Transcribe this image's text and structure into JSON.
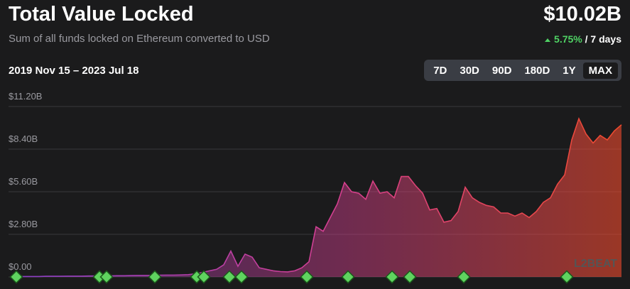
{
  "header": {
    "title": "Total Value Locked",
    "subtitle": "Sum of all funds locked on Ethereum converted to USD",
    "total": "$10.02B",
    "change": "5.75%",
    "period": "/ 7 days",
    "date_range": "2019 Nov 15 – 2023 Jul 18",
    "ranges": [
      "7D",
      "30D",
      "90D",
      "180D",
      "1Y",
      "MAX"
    ],
    "selected_range": "MAX"
  },
  "watermark": "L2BEAT",
  "chart_data": {
    "type": "area",
    "colors": [
      "#8a3fc9",
      "#d63f8e",
      "#ef4a2c"
    ],
    "grid": true,
    "ylim": [
      0,
      11.2
    ],
    "yticks": [
      {
        "value": 0,
        "label": "$0.00"
      },
      {
        "value": 2.8,
        "label": "$2.80B"
      },
      {
        "value": 5.6,
        "label": "$5.60B"
      },
      {
        "value": 8.4,
        "label": "$8.40B"
      },
      {
        "value": 11.2,
        "label": "$11.20B"
      }
    ],
    "values": [
      0.02,
      0.02,
      0.03,
      0.03,
      0.03,
      0.04,
      0.04,
      0.04,
      0.05,
      0.05,
      0.05,
      0.06,
      0.06,
      0.07,
      0.07,
      0.08,
      0.08,
      0.09,
      0.1,
      0.1,
      0.1,
      0.11,
      0.12,
      0.12,
      0.13,
      0.15,
      0.2,
      0.3,
      0.4,
      0.5,
      0.8,
      1.7,
      0.7,
      1.5,
      1.3,
      0.6,
      0.5,
      0.4,
      0.35,
      0.33,
      0.4,
      0.6,
      1.0,
      3.3,
      3.0,
      3.9,
      4.8,
      6.2,
      5.6,
      5.5,
      5.1,
      6.3,
      5.5,
      5.6,
      5.2,
      6.6,
      6.6,
      6.0,
      5.5,
      4.4,
      4.5,
      3.6,
      3.7,
      4.3,
      5.9,
      5.2,
      4.9,
      4.7,
      4.6,
      4.2,
      4.2,
      4.0,
      4.2,
      3.9,
      4.3,
      4.9,
      5.2,
      6.1,
      6.7,
      9.0,
      10.4,
      9.4,
      8.8,
      9.3,
      9.0,
      9.6,
      10.0
    ]
  }
}
